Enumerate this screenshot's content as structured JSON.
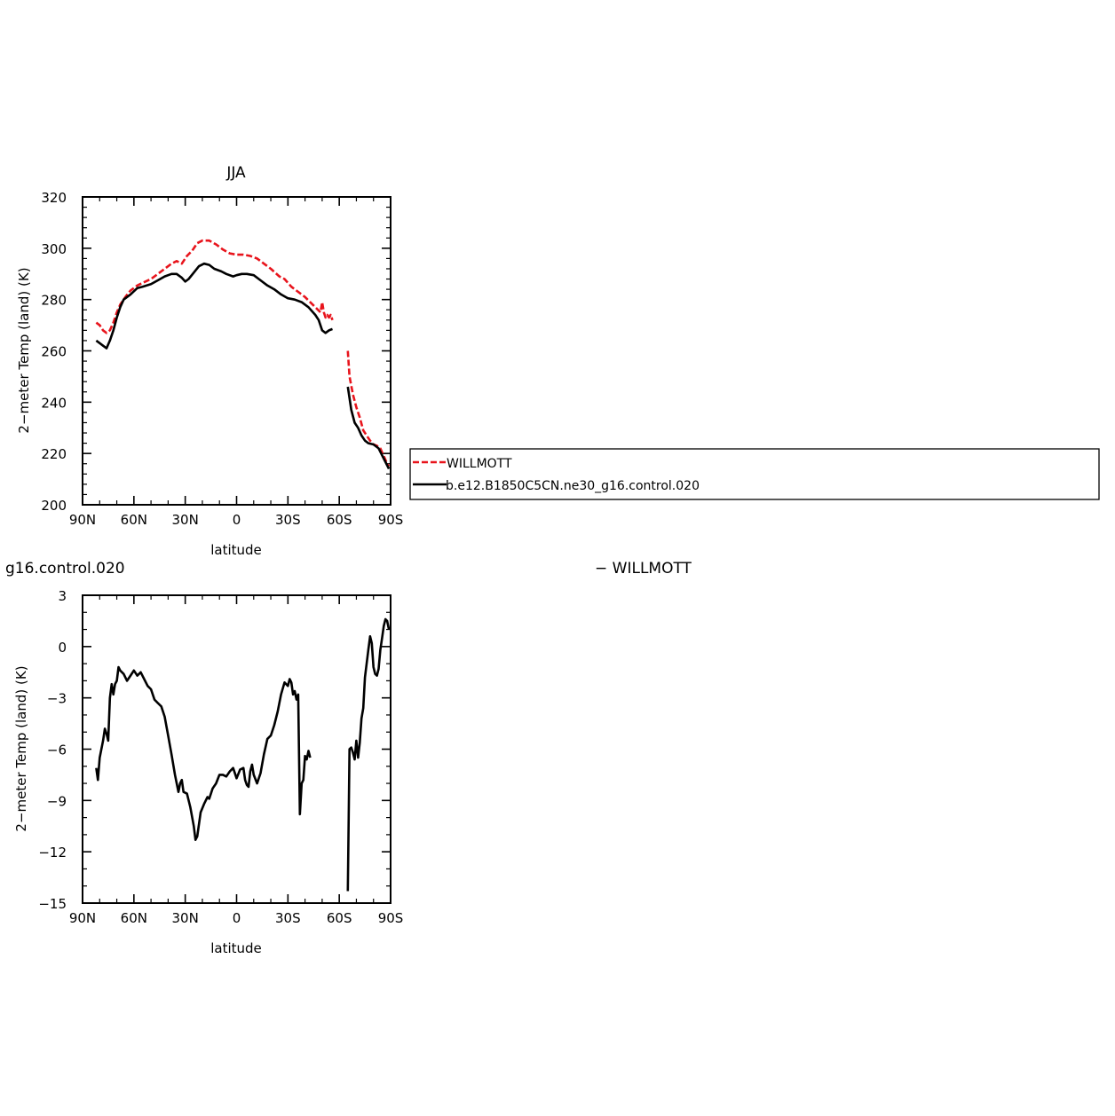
{
  "chart_data": [
    {
      "type": "line",
      "title": "JJA",
      "xlabel": "latitude",
      "ylabel": "2−meter Temp (land) (K)",
      "xlim": [
        90,
        -90
      ],
      "ylim": [
        200,
        320
      ],
      "x_ticks": [
        90,
        60,
        30,
        0,
        -30,
        -60,
        -90
      ],
      "x_tick_labels": [
        "90N",
        "60N",
        "30N",
        "0",
        "30S",
        "60S",
        "90S"
      ],
      "y_ticks": [
        200,
        220,
        240,
        260,
        280,
        300,
        320
      ],
      "y_tick_labels": [
        "200",
        "220",
        "240",
        "260",
        "280",
        "300",
        "320"
      ],
      "legend": {
        "placement": "right",
        "entries": [
          "WILLMOTT",
          "b.e12.B1850C5CN.ne30_g16.control.020"
        ]
      },
      "series": [
        {
          "name": "WILLMOTT",
          "color": "#e8141c",
          "dash": "dashed",
          "segments": [
            [
              [
                82,
                271
              ],
              [
                80,
                270
              ],
              [
                78,
                268
              ],
              [
                76,
                267
              ],
              [
                74,
                268
              ],
              [
                72,
                271
              ],
              [
                70,
                275
              ],
              [
                68,
                278
              ],
              [
                65,
                281
              ],
              [
                62,
                283.5
              ],
              [
                58,
                285.5
              ],
              [
                55,
                286.5
              ],
              [
                50,
                288
              ],
              [
                46,
                290
              ],
              [
                42,
                292
              ],
              [
                38,
                294
              ],
              [
                35,
                295
              ],
              [
                32,
                294
              ],
              [
                29,
                297
              ],
              [
                26,
                299
              ],
              [
                23,
                302
              ],
              [
                20,
                303
              ],
              [
                16,
                303
              ],
              [
                12,
                301.5
              ],
              [
                8,
                299.5
              ],
              [
                4,
                298
              ],
              [
                0,
                297.5
              ],
              [
                -4,
                297.5
              ],
              [
                -8,
                297
              ],
              [
                -12,
                296
              ],
              [
                -16,
                294
              ],
              [
                -20,
                292
              ],
              [
                -25,
                289
              ],
              [
                -28,
                288
              ],
              [
                -32,
                285
              ],
              [
                -36,
                283
              ],
              [
                -40,
                281
              ],
              [
                -43,
                279
              ],
              [
                -46,
                277
              ],
              [
                -49,
                275
              ],
              [
                -50,
                279
              ],
              [
                -51,
                275
              ],
              [
                -52,
                273
              ],
              [
                -53,
                274
              ],
              [
                -54,
                273
              ],
              [
                -55,
                274
              ],
              [
                -56,
                272
              ]
            ],
            [
              [
                -65,
                260
              ],
              [
                -66,
                250
              ],
              [
                -68,
                243
              ],
              [
                -70,
                238
              ],
              [
                -72,
                234
              ],
              [
                -74,
                229
              ],
              [
                -76,
                227
              ],
              [
                -78,
                225
              ],
              [
                -80,
                223.5
              ],
              [
                -82,
                223
              ],
              [
                -84,
                222
              ],
              [
                -86,
                219
              ],
              [
                -88,
                216
              ],
              [
                -89,
                215
              ]
            ]
          ]
        },
        {
          "name": "b.e12.B1850C5CN.ne30_g16.control.020",
          "color": "#000000",
          "dash": "solid",
          "segments": [
            [
              [
                82,
                264
              ],
              [
                80,
                263
              ],
              [
                78,
                262
              ],
              [
                76,
                261
              ],
              [
                74,
                264
              ],
              [
                72,
                268
              ],
              [
                70,
                273
              ],
              [
                68,
                277
              ],
              [
                66,
                280
              ],
              [
                62,
                282
              ],
              [
                58,
                284.5
              ],
              [
                55,
                285
              ],
              [
                50,
                286
              ],
              [
                46,
                287.5
              ],
              [
                42,
                289
              ],
              [
                38,
                290
              ],
              [
                35,
                290
              ],
              [
                32,
                288.5
              ],
              [
                30,
                287
              ],
              [
                28,
                288
              ],
              [
                25,
                290.5
              ],
              [
                22,
                293
              ],
              [
                19,
                294
              ],
              [
                16,
                293.5
              ],
              [
                13,
                292
              ],
              [
                9,
                291
              ],
              [
                6,
                290
              ],
              [
                2,
                289
              ],
              [
                0,
                289.5
              ],
              [
                -3,
                290
              ],
              [
                -6,
                290
              ],
              [
                -10,
                289.5
              ],
              [
                -14,
                287.5
              ],
              [
                -18,
                285.5
              ],
              [
                -22,
                284
              ],
              [
                -26,
                282
              ],
              [
                -30,
                280.5
              ],
              [
                -34,
                280
              ],
              [
                -38,
                279
              ],
              [
                -42,
                277
              ],
              [
                -46,
                274
              ],
              [
                -48,
                272
              ],
              [
                -50,
                268
              ],
              [
                -52,
                267
              ],
              [
                -54,
                268
              ],
              [
                -56,
                268.5
              ]
            ],
            [
              [
                -65,
                246
              ],
              [
                -67,
                237
              ],
              [
                -69,
                232
              ],
              [
                -71,
                230
              ],
              [
                -73,
                227
              ],
              [
                -75,
                225
              ],
              [
                -77,
                224
              ],
              [
                -80,
                223.5
              ],
              [
                -83,
                222
              ],
              [
                -86,
                218
              ],
              [
                -89,
                214
              ]
            ]
          ]
        }
      ]
    },
    {
      "type": "line",
      "title": "g16.control.020",
      "title_right": "− WILLMOTT",
      "xlabel": "latitude",
      "ylabel": "2−meter Temp (land) (K)",
      "xlim": [
        90,
        -90
      ],
      "ylim": [
        -15,
        3
      ],
      "x_ticks": [
        90,
        60,
        30,
        0,
        -30,
        -60,
        -90
      ],
      "x_tick_labels": [
        "90N",
        "60N",
        "30N",
        "0",
        "30S",
        "60S",
        "90S"
      ],
      "y_ticks": [
        -15,
        -12,
        -9,
        -6,
        -3,
        0,
        3
      ],
      "y_tick_labels": [
        "−15",
        "−12",
        "−9",
        "−6",
        "−3",
        "0",
        "3"
      ],
      "series": [
        {
          "color": "#000000",
          "dash": "solid",
          "segments": [
            [
              [
                82,
                -7.1
              ],
              [
                81,
                -7.8
              ],
              [
                80,
                -6.5
              ],
              [
                78,
                -5.5
              ],
              [
                77,
                -4.8
              ],
              [
                76,
                -5.1
              ],
              [
                75,
                -5.5
              ],
              [
                74,
                -3
              ],
              [
                73,
                -2.2
              ],
              [
                72,
                -2.8
              ],
              [
                71,
                -2.2
              ],
              [
                70,
                -2
              ],
              [
                69,
                -1.2
              ],
              [
                68,
                -1.4
              ],
              [
                66,
                -1.6
              ],
              [
                64,
                -2
              ],
              [
                62,
                -1.7
              ],
              [
                60,
                -1.4
              ],
              [
                58,
                -1.7
              ],
              [
                56,
                -1.5
              ],
              [
                54,
                -1.9
              ],
              [
                52,
                -2.3
              ],
              [
                50,
                -2.5
              ],
              [
                48,
                -3.1
              ],
              [
                46,
                -3.3
              ],
              [
                44,
                -3.5
              ],
              [
                42,
                -4.1
              ],
              [
                40,
                -5.2
              ],
              [
                38,
                -6.3
              ],
              [
                36,
                -7.5
              ],
              [
                34,
                -8.5
              ],
              [
                33,
                -8
              ],
              [
                32,
                -7.8
              ],
              [
                31,
                -8.5
              ],
              [
                29,
                -8.6
              ],
              [
                27,
                -9.4
              ],
              [
                25,
                -10.5
              ],
              [
                24,
                -11.3
              ],
              [
                23,
                -11.1
              ],
              [
                21,
                -9.7
              ],
              [
                19,
                -9.2
              ],
              [
                17,
                -8.8
              ],
              [
                16,
                -8.9
              ],
              [
                14,
                -8.3
              ],
              [
                12,
                -8
              ],
              [
                10,
                -7.5
              ],
              [
                8,
                -7.5
              ],
              [
                6,
                -7.6
              ],
              [
                4,
                -7.3
              ],
              [
                2,
                -7.1
              ],
              [
                0,
                -7.7
              ],
              [
                -2,
                -7.2
              ],
              [
                -4,
                -7.1
              ],
              [
                -5,
                -7.8
              ],
              [
                -6,
                -8.1
              ],
              [
                -7,
                -8.2
              ],
              [
                -8,
                -7.3
              ],
              [
                -9,
                -6.9
              ],
              [
                -10,
                -7.5
              ],
              [
                -12,
                -8
              ],
              [
                -14,
                -7.4
              ],
              [
                -16,
                -6.3
              ],
              [
                -18,
                -5.4
              ],
              [
                -20,
                -5.2
              ],
              [
                -22,
                -4.6
              ],
              [
                -24,
                -3.8
              ],
              [
                -26,
                -2.8
              ],
              [
                -28,
                -2.1
              ],
              [
                -30,
                -2.3
              ],
              [
                -31,
                -1.9
              ],
              [
                -32,
                -2.1
              ],
              [
                -33,
                -2.8
              ],
              [
                -34,
                -2.6
              ],
              [
                -35,
                -3.1
              ],
              [
                -36,
                -2.8
              ],
              [
                -37,
                -9.8
              ],
              [
                -38,
                -8
              ],
              [
                -39,
                -7.8
              ],
              [
                -40,
                -6.4
              ],
              [
                -41,
                -6.6
              ],
              [
                -42,
                -6.1
              ],
              [
                -43,
                -6.5
              ]
            ],
            [
              [
                -65,
                -14.3
              ],
              [
                -66,
                -6
              ],
              [
                -67,
                -5.9
              ],
              [
                -68,
                -6.2
              ],
              [
                -69,
                -6.6
              ],
              [
                -70,
                -5.5
              ],
              [
                -71,
                -6.5
              ],
              [
                -72,
                -5.6
              ],
              [
                -73,
                -4.2
              ],
              [
                -74,
                -3.6
              ],
              [
                -75,
                -1.8
              ],
              [
                -76,
                -1
              ],
              [
                -77,
                -0.2
              ],
              [
                -78,
                0.6
              ],
              [
                -79,
                0.2
              ],
              [
                -80,
                -1.2
              ],
              [
                -81,
                -1.6
              ],
              [
                -82,
                -1.7
              ],
              [
                -83,
                -1.3
              ],
              [
                -84,
                -0.2
              ],
              [
                -85,
                0.5
              ],
              [
                -86,
                1.2
              ],
              [
                -87,
                1.6
              ],
              [
                -88,
                1.5
              ],
              [
                -89,
                1
              ]
            ]
          ]
        }
      ]
    }
  ]
}
